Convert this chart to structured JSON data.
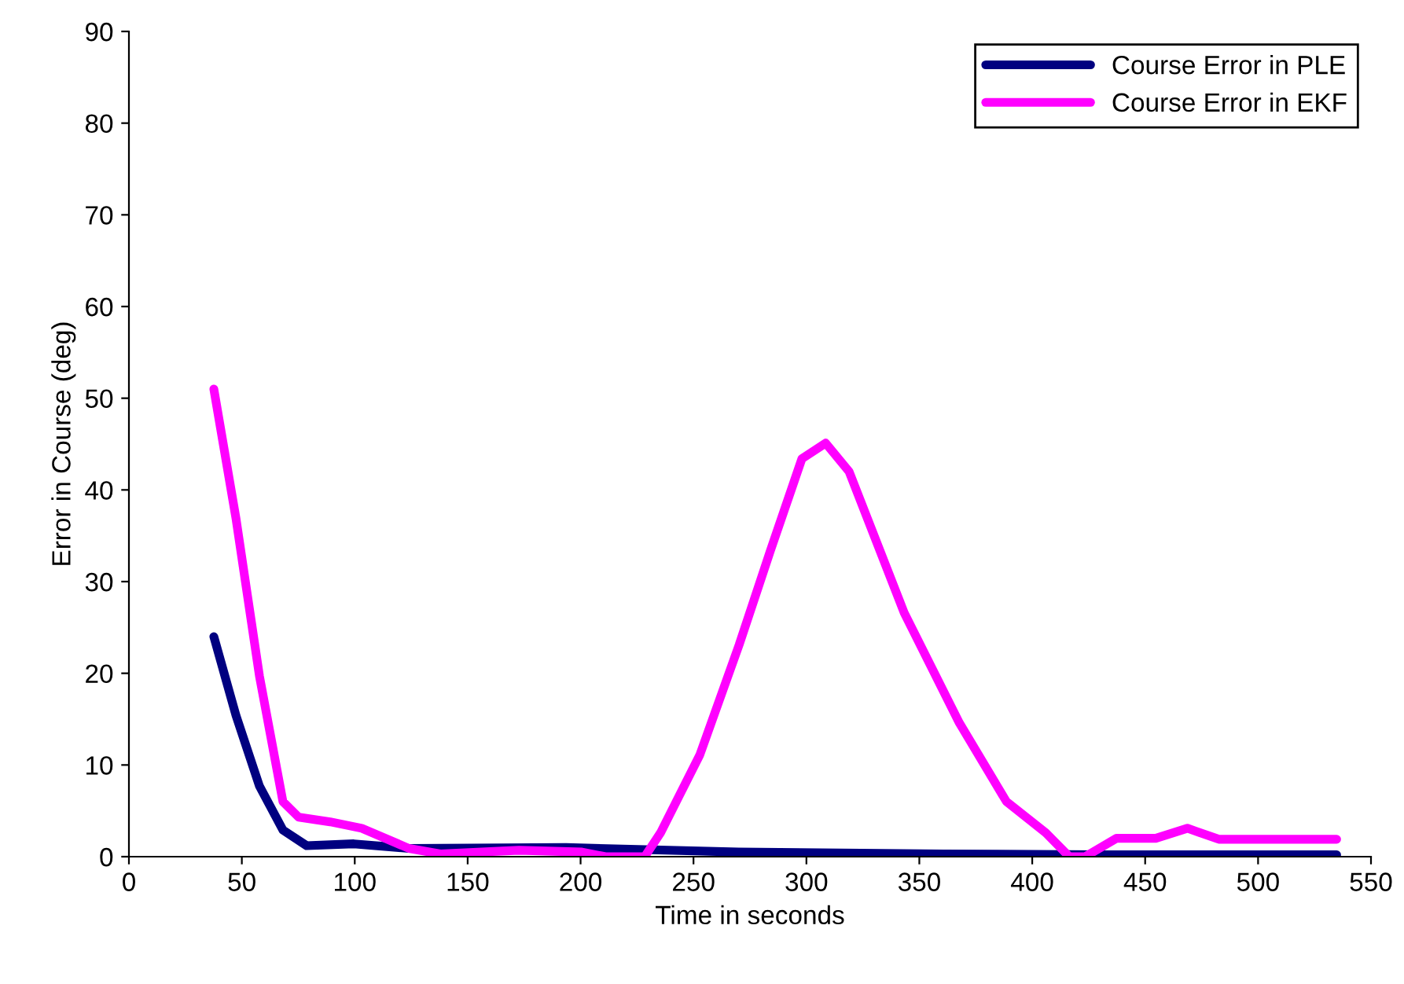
{
  "chart_data": {
    "type": "line",
    "xlabel": "Time in seconds",
    "ylabel": "Error in Course (deg)",
    "xlim": [
      0,
      550
    ],
    "ylim": [
      0,
      90
    ],
    "xticks": [
      0,
      50,
      100,
      150,
      200,
      250,
      300,
      350,
      400,
      450,
      500,
      550
    ],
    "yticks": [
      0,
      10,
      20,
      30,
      40,
      50,
      60,
      70,
      80,
      90
    ],
    "grid": false,
    "legend": "top right",
    "marker": "none",
    "line_style": "solid",
    "series": [
      {
        "name": "Course Error in PLE",
        "color": "#000080",
        "x": [
          37.6,
          47.4,
          57.8,
          68.2,
          78.7,
          99.6,
          124,
          193.6,
          270,
          360.7,
          430,
          534.8
        ],
        "values": [
          24,
          15.4,
          7.7,
          2.9,
          1.2,
          1.4,
          0.9,
          1,
          0.5,
          0.3,
          0.2,
          0.2
        ]
      },
      {
        "name": "Course Error in EKF",
        "color": "#ff00ff",
        "x": [
          37.6,
          47.4,
          57.8,
          68.2,
          75.2,
          89.1,
          103.1,
          124,
          137.9,
          172.7,
          200.6,
          211,
          228.4,
          235.4,
          252.8,
          270.2,
          284.1,
          298,
          308.5,
          318.9,
          343.3,
          367.7,
          388.6,
          406,
          416.4,
          423.4,
          437.3,
          454.7,
          468.7,
          482.6,
          534.8
        ],
        "values": [
          51,
          36.9,
          19.7,
          6,
          4.3,
          3.8,
          3.1,
          0.9,
          0.3,
          0.7,
          0.5,
          0,
          0,
          2.6,
          11.1,
          23.1,
          33.4,
          43.4,
          45.1,
          42,
          26.6,
          14.6,
          6,
          2.6,
          0,
          0,
          2,
          2,
          3.1,
          1.9,
          1.9
        ]
      }
    ]
  }
}
